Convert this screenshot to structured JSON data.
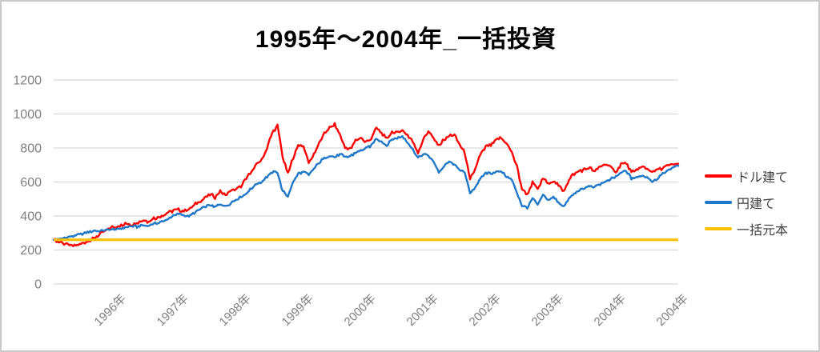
{
  "title": "1995年～2004年_一括投資",
  "colors": {
    "usd": "#FF0000",
    "jpy": "#1F77C8",
    "principal": "#FFC000",
    "gridline": "#D9D9D9",
    "axis_text": "#7F7F7F",
    "legend_text": "#404040",
    "frame": "#C9C9C9"
  },
  "legend": {
    "items": [
      {
        "key": "usd",
        "label": "ドル建て"
      },
      {
        "key": "jpy",
        "label": "円建て"
      },
      {
        "key": "principal",
        "label": "一括元本"
      }
    ]
  },
  "chart_data": {
    "type": "line",
    "title": "1995年～2004年_一括投資",
    "xlabel": "",
    "ylabel": "",
    "ylim": [
      0,
      1200
    ],
    "y_ticks": [
      0,
      200,
      400,
      600,
      800,
      1000,
      1200
    ],
    "x_start_year": 1995,
    "x_end_year": 2005,
    "x_tick_labels": [
      "1996年",
      "1997年",
      "1998年",
      "1999年",
      "2000年",
      "2001年",
      "2002年",
      "2003年",
      "2004年",
      "2004年"
    ],
    "grid": "horizontal",
    "legend_position": "right",
    "sampling": "monthly from Jan 1995 to Dec 2004 plus final end-of-2004 point",
    "series": [
      {
        "key": "usd",
        "name": "ドル建て",
        "color": "#FF0000",
        "values": [
          260,
          250,
          238,
          230,
          226,
          234,
          244,
          258,
          272,
          295,
          315,
          330,
          336,
          342,
          355,
          348,
          362,
          375,
          368,
          382,
          395,
          408,
          420,
          432,
          438,
          426,
          442,
          464,
          486,
          506,
          528,
          512,
          546,
          522,
          550,
          562,
          575,
          620,
          662,
          700,
          732,
          800,
          890,
          930,
          750,
          645,
          742,
          815,
          812,
          710,
          762,
          832,
          886,
          916,
          940,
          878,
          802,
          792,
          846,
          860,
          832,
          856,
          920,
          884,
          852,
          894,
          886,
          908,
          874,
          838,
          772,
          850,
          898,
          854,
          812,
          850,
          872,
          877,
          820,
          770,
          612,
          680,
          760,
          806,
          814,
          846,
          861,
          828,
          778,
          690,
          560,
          524,
          598,
          558,
          624,
          590,
          610,
          576,
          547,
          612,
          650,
          665,
          672,
          680,
          662,
          690,
          704,
          688,
          660,
          704,
          712,
          652,
          672,
          690,
          678,
          658,
          672,
          682,
          696,
          704,
          708
        ]
      },
      {
        "key": "jpy",
        "name": "円建て",
        "color": "#1F77C8",
        "values": [
          260,
          264,
          270,
          277,
          284,
          292,
          299,
          307,
          314,
          310,
          316,
          320,
          320,
          327,
          334,
          340,
          336,
          346,
          341,
          351,
          359,
          369,
          382,
          400,
          414,
          407,
          400,
          417,
          440,
          452,
          464,
          451,
          470,
          456,
          476,
          495,
          512,
          532,
          562,
          592,
          602,
          632,
          656,
          660,
          545,
          515,
          600,
          650,
          660,
          641,
          681,
          714,
          740,
          754,
          747,
          764,
          745,
          753,
          772,
          788,
          800,
          815,
          856,
          836,
          815,
          850,
          858,
          868,
          836,
          790,
          742,
          764,
          753,
          720,
          656,
          690,
          719,
          700,
          676,
          650,
          535,
          571,
          620,
          654,
          650,
          658,
          661,
          634,
          610,
          540,
          460,
          447,
          506,
          466,
          524,
          494,
          510,
          481,
          453,
          505,
          530,
          552,
          565,
          576,
          570,
          590,
          601,
          616,
          630,
          654,
          664,
          621,
          628,
          636,
          630,
          604,
          622,
          645,
          668,
          688,
          695
        ]
      },
      {
        "key": "principal",
        "name": "一括元本",
        "color": "#FFC000",
        "constant": 260
      }
    ]
  }
}
